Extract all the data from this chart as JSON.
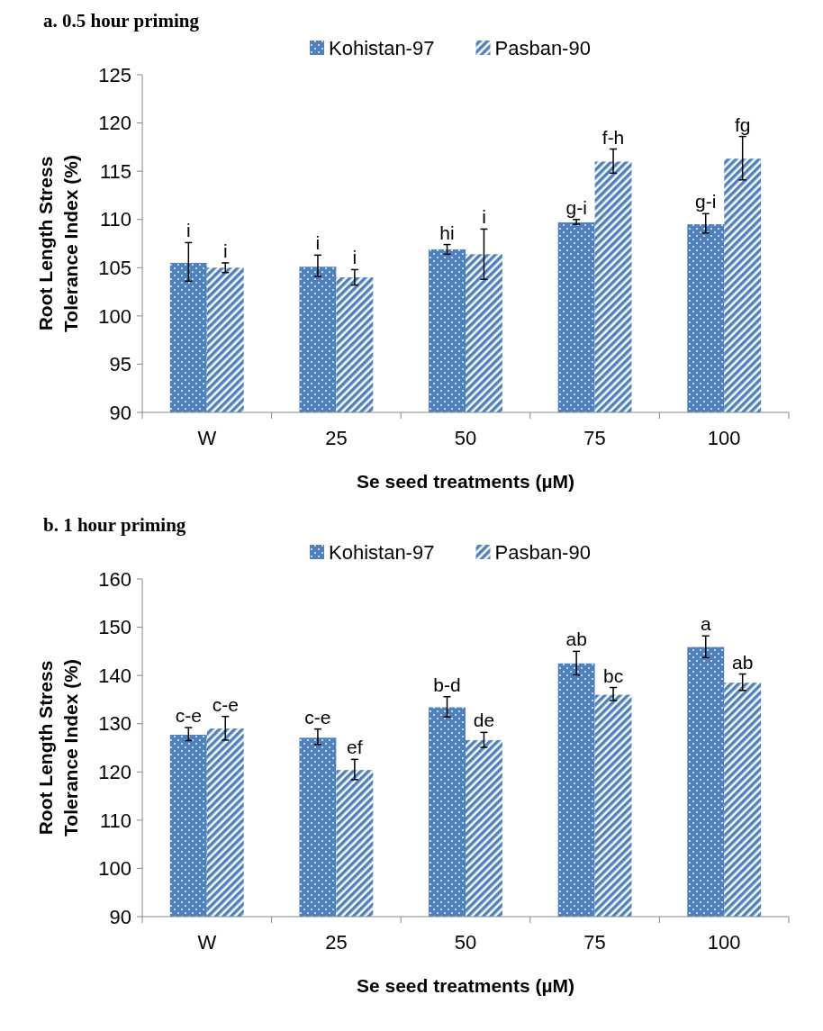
{
  "chart_data": [
    {
      "type": "bar",
      "title": "a. 0.5 hour priming",
      "xlabel": "Se seed treatments (µM)",
      "ylabel": "Root Length Stress Tolerance Index (%)",
      "categories": [
        "W",
        "25",
        "50",
        "75",
        "100"
      ],
      "ylim": [
        90,
        125
      ],
      "yticks": [
        90,
        95,
        100,
        105,
        110,
        115,
        120,
        125
      ],
      "legend": "top",
      "grid": false,
      "series": [
        {
          "name": "Kohistan-97",
          "color": "#4f81bd",
          "values": [
            105.5,
            105.1,
            106.9,
            109.7,
            109.5
          ],
          "errors": [
            [
              103.6,
              107.6
            ],
            [
              104.1,
              106.3
            ],
            [
              106.4,
              107.4
            ],
            [
              109.5,
              110.0
            ],
            [
              108.6,
              110.6
            ]
          ],
          "value_labels": [
            "i",
            "i",
            "hi",
            "g-i",
            "g-i"
          ]
        },
        {
          "name": "Pasban-90",
          "color": "#4f81bd",
          "values": [
            105.0,
            104.0,
            106.4,
            116.0,
            116.3
          ],
          "errors": [
            [
              104.5,
              105.5
            ],
            [
              103.2,
              104.8
            ],
            [
              103.8,
              109.0
            ],
            [
              114.8,
              117.3
            ],
            [
              114.1,
              118.6
            ]
          ],
          "value_labels": [
            "i",
            "i",
            "i",
            "f-h",
            "fg"
          ]
        }
      ]
    },
    {
      "type": "bar",
      "title": "b. 1 hour priming",
      "xlabel": "Se seed treatments (µM)",
      "ylabel": "Root Length Stress Tolerance Index (%)",
      "categories": [
        "W",
        "25",
        "50",
        "75",
        "100"
      ],
      "ylim": [
        90,
        160
      ],
      "yticks": [
        90,
        100,
        110,
        120,
        130,
        140,
        150,
        160
      ],
      "legend": "top",
      "grid": false,
      "series": [
        {
          "name": "Kohistan-97",
          "color": "#4f81bd",
          "values": [
            127.7,
            127.1,
            133.4,
            142.5,
            145.9
          ],
          "errors": [
            [
              126.5,
              129.2
            ],
            [
              125.7,
              128.9
            ],
            [
              131.4,
              135.6
            ],
            [
              140.1,
              145.0
            ],
            [
              143.7,
              148.2
            ]
          ],
          "value_labels": [
            "c-e",
            "c-e",
            "b-d",
            "ab",
            "a"
          ]
        },
        {
          "name": "Pasban-90",
          "color": "#4f81bd",
          "values": [
            129.0,
            120.4,
            126.6,
            136.0,
            138.5
          ],
          "errors": [
            [
              126.6,
              131.5
            ],
            [
              118.4,
              122.6
            ],
            [
              125.1,
              128.2
            ],
            [
              134.8,
              137.5
            ],
            [
              136.9,
              140.3
            ]
          ],
          "value_labels": [
            "c-e",
            "ef",
            "de",
            "bc",
            "ab"
          ]
        }
      ]
    }
  ]
}
